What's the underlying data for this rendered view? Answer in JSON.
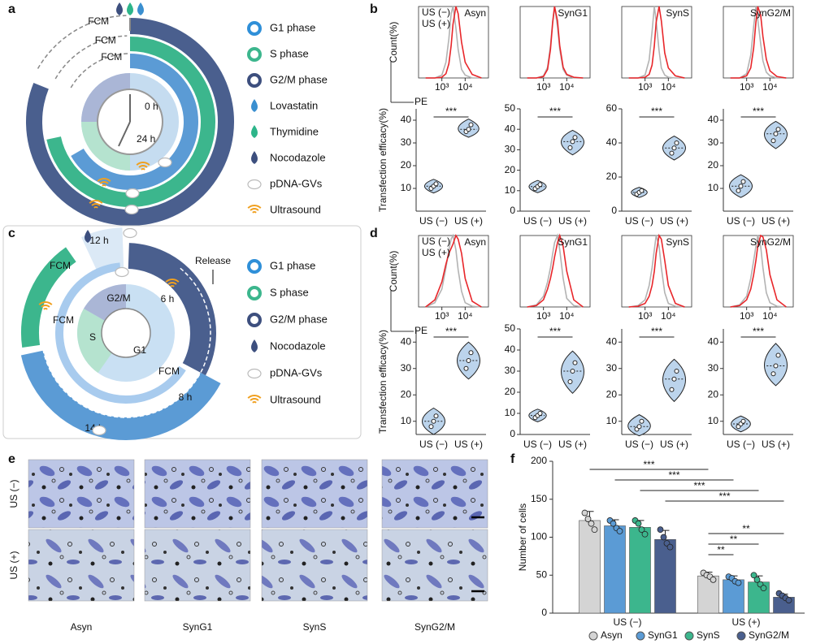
{
  "panel_labels": [
    "a",
    "b",
    "c",
    "d",
    "e",
    "f"
  ],
  "panels": {
    "a": {
      "fcm": [
        "FCM",
        "FCM",
        "FCM"
      ],
      "clock": [
        "0 h",
        "24 h"
      ],
      "legend": [
        "G1 phase",
        "S phase",
        "G2/M phase",
        "Lovastatin",
        "Thymidine",
        "Nocodazole",
        "pDNA-GVs",
        "Ultrasound"
      ]
    },
    "c": {
      "times": [
        "12 h",
        "6 h",
        "8 h",
        "14 h"
      ],
      "fcm": [
        "FCM",
        "FCM",
        "FCM"
      ],
      "release": "Release",
      "phases": [
        "G2/M",
        "S",
        "G1"
      ],
      "legend": [
        "G1 phase",
        "S phase",
        "G2/M phase",
        "Nocodazole",
        "pDNA-GVs",
        "Ultrasound"
      ]
    },
    "e": {
      "rows": [
        "US (−)",
        "US (+)"
      ],
      "columns": [
        "Asyn",
        "SynG1",
        "SynS",
        "SynG2/M"
      ]
    }
  },
  "chart_data": [
    {
      "type": "line",
      "title": "Asyn",
      "y_label": "Count(%)",
      "x_label": "PE",
      "log_x": true,
      "xlim": [
        100,
        100000
      ],
      "ylim": [
        0,
        100
      ],
      "xticks": [
        {
          "value": 1000,
          "label": "10³"
        },
        {
          "value": 10000,
          "label": "10⁴"
        }
      ],
      "x": [
        200,
        500,
        1000,
        1500,
        2000,
        2500,
        3000,
        4000,
        5000,
        7000,
        10000,
        20000,
        50000
      ],
      "series": [
        {
          "name": "US (−)",
          "color": "#b3b3b3",
          "values": [
            0,
            0,
            4,
            22,
            55,
            90,
            100,
            70,
            40,
            12,
            4,
            0,
            0
          ]
        },
        {
          "name": "US (+)",
          "color": "#e8262a",
          "values": [
            0,
            0,
            1,
            6,
            20,
            45,
            75,
            100,
            90,
            50,
            22,
            5,
            0
          ]
        }
      ]
    },
    {
      "type": "line",
      "title": "SynG1",
      "log_x": true,
      "xlim": [
        100,
        100000
      ],
      "ylim": [
        0,
        100
      ],
      "xticks": [
        {
          "value": 1000,
          "label": "10³"
        },
        {
          "value": 10000,
          "label": "10⁴"
        }
      ],
      "x": [
        200,
        500,
        1000,
        1500,
        2000,
        2500,
        3000,
        4000,
        5000,
        7000,
        10000,
        20000,
        50000
      ],
      "series": [
        {
          "color": "#b3b3b3",
          "values": [
            0,
            0,
            3,
            15,
            45,
            80,
            100,
            72,
            40,
            12,
            4,
            0,
            0
          ]
        },
        {
          "color": "#e8262a",
          "values": [
            0,
            0,
            2,
            12,
            40,
            78,
            100,
            80,
            45,
            15,
            5,
            1,
            0
          ]
        }
      ]
    },
    {
      "type": "line",
      "title": "SynS",
      "log_x": true,
      "xlim": [
        100,
        100000
      ],
      "ylim": [
        0,
        100
      ],
      "xticks": [
        {
          "value": 1000,
          "label": "10³"
        },
        {
          "value": 10000,
          "label": "10⁴"
        }
      ],
      "x": [
        200,
        500,
        1000,
        1500,
        2000,
        2500,
        3000,
        4000,
        5000,
        7000,
        10000,
        20000,
        50000
      ],
      "series": [
        {
          "color": "#b3b3b3",
          "values": [
            0,
            0,
            4,
            25,
            65,
            100,
            80,
            38,
            14,
            4,
            1,
            0,
            0
          ]
        },
        {
          "color": "#e8262a",
          "values": [
            0,
            0,
            1,
            5,
            18,
            45,
            78,
            100,
            80,
            35,
            14,
            3,
            0
          ]
        }
      ]
    },
    {
      "type": "line",
      "title": "SynG2/M",
      "log_x": true,
      "xlim": [
        100,
        100000
      ],
      "ylim": [
        0,
        100
      ],
      "xticks": [
        {
          "value": 1000,
          "label": "10³"
        },
        {
          "value": 10000,
          "label": "10⁴"
        }
      ],
      "x": [
        200,
        500,
        1000,
        1500,
        2000,
        2500,
        3000,
        4000,
        5000,
        7000,
        10000,
        20000,
        50000
      ],
      "series": [
        {
          "color": "#b3b3b3",
          "values": [
            0,
            0,
            6,
            32,
            72,
            100,
            82,
            48,
            24,
            8,
            3,
            0,
            0
          ]
        },
        {
          "color": "#e8262a",
          "values": [
            0,
            0,
            3,
            14,
            42,
            78,
            100,
            88,
            58,
            26,
            10,
            2,
            0
          ]
        }
      ]
    },
    {
      "type": "violin",
      "y_label": "Transfection efficacy(%)",
      "categories": [
        "US (−)",
        "US (+)"
      ],
      "values": [
        [
          10,
          11,
          12
        ],
        [
          35,
          36,
          38
        ]
      ],
      "ylim": [
        0,
        45
      ],
      "yticks": [
        10,
        20,
        30,
        40
      ],
      "annotation": "***",
      "color": "#bcd4ec"
    },
    {
      "type": "violin",
      "categories": [
        "US (−)",
        "US (+)"
      ],
      "values": [
        [
          11,
          12,
          13
        ],
        [
          31,
          34,
          36
        ]
      ],
      "ylim": [
        0,
        50
      ],
      "yticks": [
        0,
        10,
        20,
        30,
        40,
        50
      ],
      "annotation": "***",
      "color": "#bcd4ec"
    },
    {
      "type": "violin",
      "categories": [
        "US (−)",
        "US (+)"
      ],
      "values": [
        [
          10,
          11,
          12
        ],
        [
          34,
          37,
          40
        ]
      ],
      "ylim": [
        0,
        60
      ],
      "yticks": [
        0,
        20,
        40,
        60
      ],
      "annotation": "***",
      "color": "#bcd4ec"
    },
    {
      "type": "violin",
      "categories": [
        "US (−)",
        "US (+)"
      ],
      "values": [
        [
          9,
          11,
          13
        ],
        [
          31,
          34,
          36
        ]
      ],
      "ylim": [
        0,
        45
      ],
      "yticks": [
        10,
        20,
        30,
        40
      ],
      "annotation": "***",
      "color": "#bcd4ec"
    },
    {
      "type": "line",
      "title": "Asyn",
      "y_label": "Count(%)",
      "x_label": "PE",
      "log_x": true,
      "xlim": [
        100,
        100000
      ],
      "ylim": [
        0,
        100
      ],
      "xticks": [
        {
          "value": 1000,
          "label": "10³"
        },
        {
          "value": 10000,
          "label": "10⁴"
        }
      ],
      "x": [
        200,
        500,
        1000,
        1500,
        2000,
        2500,
        3000,
        4000,
        5000,
        7000,
        10000,
        20000,
        50000
      ],
      "series": [
        {
          "name": "US (−)",
          "color": "#b3b3b3",
          "values": [
            0,
            6,
            25,
            55,
            80,
            95,
            100,
            80,
            52,
            22,
            6,
            1,
            0
          ]
        },
        {
          "name": "US (+)",
          "color": "#e8262a",
          "values": [
            0,
            10,
            35,
            60,
            75,
            82,
            88,
            100,
            95,
            75,
            40,
            8,
            0
          ]
        }
      ]
    },
    {
      "type": "line",
      "title": "SynG1",
      "log_x": true,
      "xlim": [
        100,
        100000
      ],
      "ylim": [
        0,
        100
      ],
      "xticks": [
        {
          "value": 1000,
          "label": "10³"
        },
        {
          "value": 10000,
          "label": "10⁴"
        }
      ],
      "x": [
        200,
        500,
        1000,
        1500,
        2000,
        2500,
        3000,
        4000,
        5000,
        7000,
        10000,
        20000,
        50000
      ],
      "series": [
        {
          "color": "#b3b3b3",
          "values": [
            0,
            3,
            15,
            35,
            55,
            75,
            90,
            100,
            80,
            40,
            12,
            2,
            0
          ]
        },
        {
          "color": "#e8262a",
          "values": [
            0,
            2,
            10,
            25,
            40,
            55,
            70,
            90,
            100,
            85,
            50,
            10,
            0
          ]
        }
      ]
    },
    {
      "type": "line",
      "title": "SynS",
      "log_x": true,
      "xlim": [
        100,
        100000
      ],
      "ylim": [
        0,
        100
      ],
      "xticks": [
        {
          "value": 1000,
          "label": "10³"
        },
        {
          "value": 10000,
          "label": "10⁴"
        }
      ],
      "x": [
        200,
        500,
        1000,
        1500,
        2000,
        2500,
        3000,
        4000,
        5000,
        7000,
        10000,
        20000,
        50000
      ],
      "series": [
        {
          "color": "#b3b3b3",
          "values": [
            0,
            2,
            10,
            30,
            55,
            80,
            100,
            85,
            55,
            20,
            5,
            1,
            0
          ]
        },
        {
          "color": "#e8262a",
          "values": [
            0,
            1,
            5,
            15,
            30,
            50,
            75,
            100,
            95,
            65,
            30,
            5,
            0
          ]
        }
      ]
    },
    {
      "type": "line",
      "title": "SynG2/M",
      "log_x": true,
      "xlim": [
        100,
        100000
      ],
      "ylim": [
        0,
        100
      ],
      "xticks": [
        {
          "value": 1000,
          "label": "10³"
        },
        {
          "value": 10000,
          "label": "10⁴"
        }
      ],
      "x": [
        200,
        500,
        1000,
        1500,
        2000,
        2500,
        3000,
        4000,
        5000,
        7000,
        10000,
        20000,
        50000
      ],
      "series": [
        {
          "color": "#b3b3b3",
          "values": [
            0,
            3,
            15,
            40,
            65,
            85,
            100,
            85,
            55,
            20,
            6,
            1,
            0
          ]
        },
        {
          "color": "#e8262a",
          "values": [
            0,
            2,
            10,
            25,
            45,
            65,
            85,
            100,
            98,
            80,
            45,
            10,
            0
          ]
        }
      ]
    },
    {
      "type": "violin",
      "y_label": "Transfection efficacy(%)",
      "categories": [
        "US (−)",
        "US (+)"
      ],
      "values": [
        [
          8,
          10,
          12
        ],
        [
          30,
          33,
          36
        ]
      ],
      "ylim": [
        5,
        45
      ],
      "yticks": [
        10,
        20,
        30,
        40
      ],
      "annotation": "***",
      "color": "#bcd4ec"
    },
    {
      "type": "violin",
      "categories": [
        "US (−)",
        "US (+)"
      ],
      "values": [
        [
          8,
          9,
          10
        ],
        [
          25,
          30,
          34
        ]
      ],
      "ylim": [
        0,
        50
      ],
      "yticks": [
        0,
        10,
        20,
        30,
        40,
        50
      ],
      "annotation": "***",
      "color": "#bcd4ec"
    },
    {
      "type": "violin",
      "categories": [
        "US (−)",
        "US (+)"
      ],
      "values": [
        [
          7,
          8,
          10
        ],
        [
          22,
          26,
          29
        ]
      ],
      "ylim": [
        5,
        45
      ],
      "yticks": [
        10,
        20,
        30,
        40
      ],
      "annotation": "***",
      "color": "#bcd4ec"
    },
    {
      "type": "violin",
      "categories": [
        "US (−)",
        "US (+)"
      ],
      "values": [
        [
          8,
          9,
          10
        ],
        [
          28,
          31,
          35
        ]
      ],
      "ylim": [
        5,
        45
      ],
      "yticks": [
        10,
        20,
        30,
        40
      ],
      "annotation": "***",
      "color": "#bcd4ec"
    },
    {
      "type": "bar",
      "y_label": "Number of cells",
      "ylim": [
        0,
        200
      ],
      "yticks": [
        0,
        50,
        100,
        150,
        200
      ],
      "categories": [
        "US (−)",
        "US (+)"
      ],
      "series": [
        {
          "name": "Asyn",
          "color": "#d4d4d4",
          "values": [
            122,
            49
          ],
          "errors": [
            12,
            5
          ],
          "points": [
            [
              132,
              124,
              118,
              110
            ],
            [
              53,
              50,
              48,
              44
            ]
          ]
        },
        {
          "name": "SynG1",
          "color": "#5b9bd5",
          "values": [
            115,
            44
          ],
          "errors": [
            8,
            5
          ],
          "points": [
            [
              122,
              118,
              112,
              108
            ],
            [
              48,
              46,
              42,
              40
            ]
          ]
        },
        {
          "name": "SynS",
          "color": "#3cb68d",
          "values": [
            113,
            41
          ],
          "errors": [
            9,
            8
          ],
          "points": [
            [
              122,
              118,
              110,
              104
            ],
            [
              50,
              44,
              38,
              33
            ]
          ]
        },
        {
          "name": "SynG2/M",
          "color": "#4a5f8e",
          "values": [
            97,
            21
          ],
          "errors": [
            12,
            4
          ],
          "points": [
            [
              110,
              100,
              92,
              87
            ],
            [
              26,
              23,
              20,
              17
            ]
          ]
        }
      ],
      "annotations": [
        "***",
        "***",
        "***",
        "***",
        "**",
        "**",
        "**"
      ]
    }
  ]
}
